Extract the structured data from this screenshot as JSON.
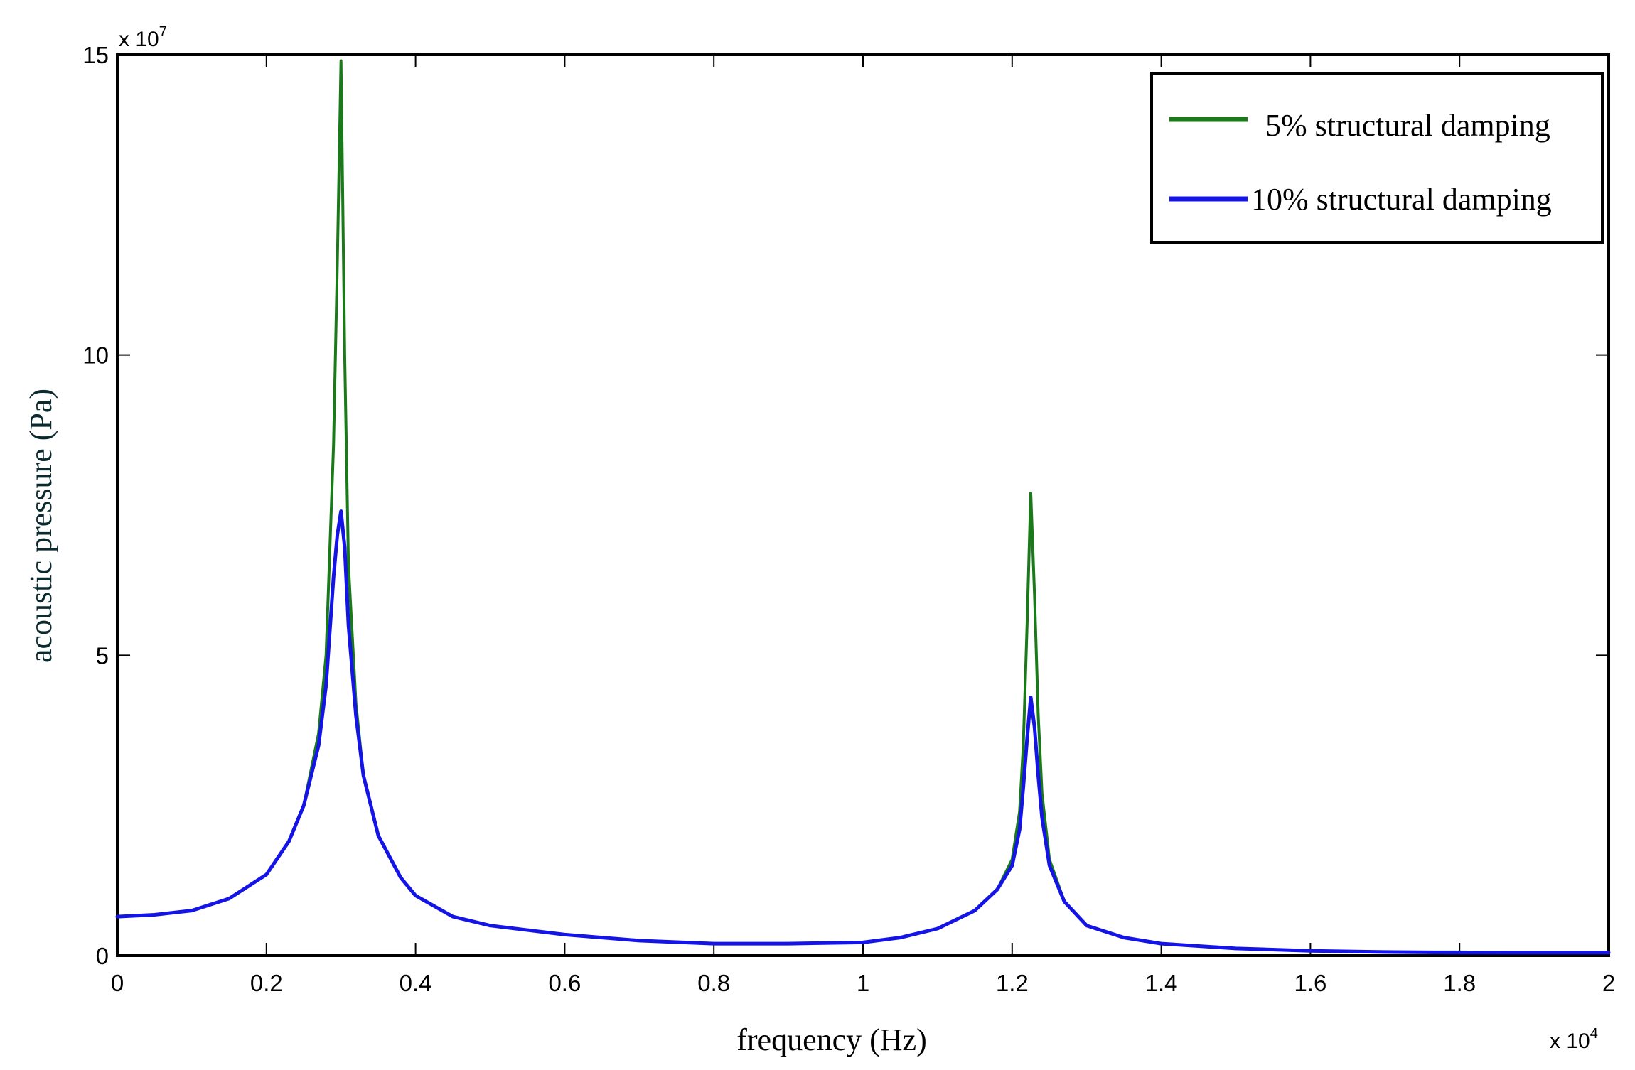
{
  "chart_data": {
    "type": "line",
    "title": "",
    "xlabel": "frequency (Hz)",
    "ylabel": "acoustic pressure (Pa)",
    "x_multiplier_base": "x 10",
    "x_multiplier_exp": "4",
    "y_multiplier_base": "x 10",
    "y_multiplier_exp": "7",
    "xlim": [
      0,
      2
    ],
    "ylim": [
      0,
      15
    ],
    "xticks": [
      0,
      0.2,
      0.4,
      0.6,
      0.8,
      1,
      1.2,
      1.4,
      1.6,
      1.8,
      2
    ],
    "xtick_labels": [
      "0",
      "0.2",
      "0.4",
      "0.6",
      "0.8",
      "1",
      "1.2",
      "1.4",
      "1.6",
      "1.8",
      "2"
    ],
    "yticks": [
      0,
      5,
      10,
      15
    ],
    "ytick_labels": [
      "0",
      "5",
      "10",
      "15"
    ],
    "grid": false,
    "legend_position": "top-right",
    "series": [
      {
        "name": "5% structural damping",
        "color": "#1a7a1a",
        "x": [
          0,
          0.05,
          0.1,
          0.15,
          0.2,
          0.23,
          0.25,
          0.27,
          0.28,
          0.29,
          0.295,
          0.3,
          0.305,
          0.31,
          0.32,
          0.33,
          0.35,
          0.38,
          0.4,
          0.45,
          0.5,
          0.6,
          0.7,
          0.8,
          0.9,
          1.0,
          1.05,
          1.1,
          1.15,
          1.18,
          1.2,
          1.21,
          1.215,
          1.22,
          1.225,
          1.23,
          1.235,
          1.24,
          1.25,
          1.27,
          1.3,
          1.35,
          1.4,
          1.5,
          1.6,
          1.7,
          1.8,
          1.9,
          2.0
        ],
        "y": [
          0.65,
          0.68,
          0.75,
          0.95,
          1.35,
          1.9,
          2.5,
          3.7,
          5.0,
          8.5,
          11.5,
          14.9,
          10.0,
          6.5,
          4.2,
          3.0,
          2.0,
          1.3,
          1.0,
          0.65,
          0.5,
          0.35,
          0.25,
          0.2,
          0.2,
          0.22,
          0.3,
          0.45,
          0.75,
          1.1,
          1.6,
          2.4,
          3.5,
          5.5,
          7.7,
          6.0,
          4.0,
          2.7,
          1.6,
          0.9,
          0.5,
          0.3,
          0.2,
          0.12,
          0.08,
          0.06,
          0.06,
          0.05,
          0.05
        ]
      },
      {
        "name": "10% structural damping",
        "color": "#1414e6",
        "x": [
          0,
          0.05,
          0.1,
          0.15,
          0.2,
          0.23,
          0.25,
          0.27,
          0.28,
          0.29,
          0.295,
          0.3,
          0.305,
          0.31,
          0.32,
          0.33,
          0.35,
          0.38,
          0.4,
          0.45,
          0.5,
          0.6,
          0.7,
          0.8,
          0.9,
          1.0,
          1.05,
          1.1,
          1.15,
          1.18,
          1.2,
          1.21,
          1.215,
          1.22,
          1.225,
          1.23,
          1.235,
          1.24,
          1.25,
          1.27,
          1.3,
          1.35,
          1.4,
          1.5,
          1.6,
          1.7,
          1.8,
          1.9,
          2.0
        ],
        "y": [
          0.65,
          0.68,
          0.75,
          0.95,
          1.35,
          1.9,
          2.5,
          3.5,
          4.5,
          6.3,
          7.0,
          7.4,
          6.8,
          5.5,
          4.0,
          3.0,
          2.0,
          1.3,
          1.0,
          0.65,
          0.5,
          0.35,
          0.25,
          0.2,
          0.2,
          0.22,
          0.3,
          0.45,
          0.75,
          1.1,
          1.5,
          2.1,
          2.8,
          3.6,
          4.3,
          3.8,
          3.0,
          2.3,
          1.5,
          0.9,
          0.5,
          0.3,
          0.2,
          0.12,
          0.08,
          0.06,
          0.05,
          0.05,
          0.05
        ]
      }
    ]
  }
}
